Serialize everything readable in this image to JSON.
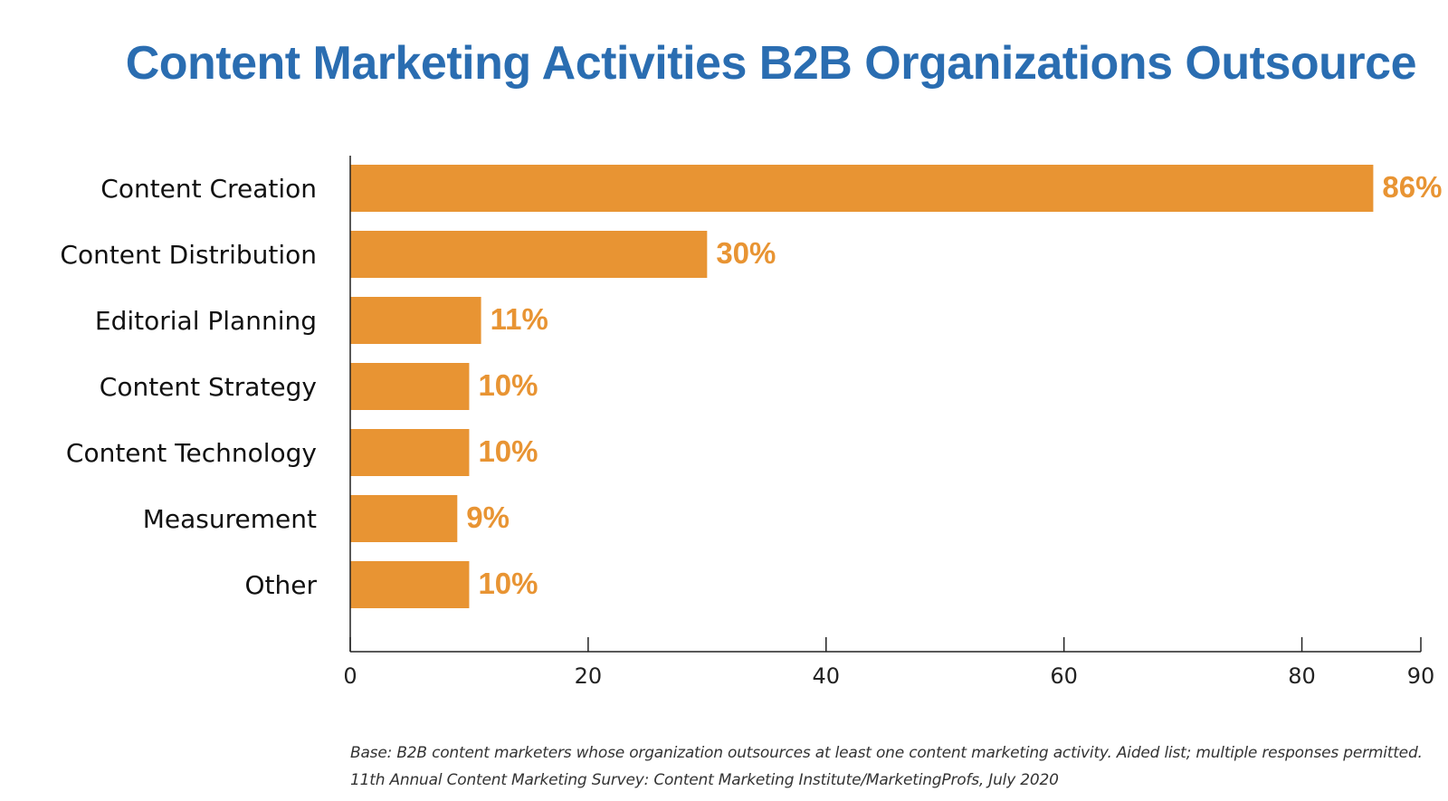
{
  "chart_data": {
    "type": "bar",
    "orientation": "horizontal",
    "title": "Content Marketing Activities B2B Organizations Outsource",
    "categories": [
      "Content Creation",
      "Content Distribution",
      "Editorial Planning",
      "Content Strategy",
      "Content Technology",
      "Measurement",
      "Other"
    ],
    "values": [
      86,
      30,
      11,
      10,
      10,
      9,
      10
    ],
    "value_labels": [
      "86%",
      "30%",
      "11%",
      "10%",
      "10%",
      "9%",
      "10%"
    ],
    "xlabel": "",
    "ylabel": "",
    "xlim": [
      0,
      90
    ],
    "xticks": [
      0,
      20,
      40,
      60,
      80,
      90
    ],
    "grid": false,
    "legend": "none"
  },
  "footnotes": {
    "base": "Base: B2B content marketers whose organization outsources at least one content marketing activity. Aided list; multiple responses permitted.",
    "source": "11th Annual Content Marketing Survey: Content Marketing Institute/MarketingProfs, July 2020"
  },
  "colors": {
    "title": "#2a6db1",
    "bar": "#e89433",
    "value_label": "#e89433",
    "axis": "#222222",
    "category_text": "#111111"
  }
}
